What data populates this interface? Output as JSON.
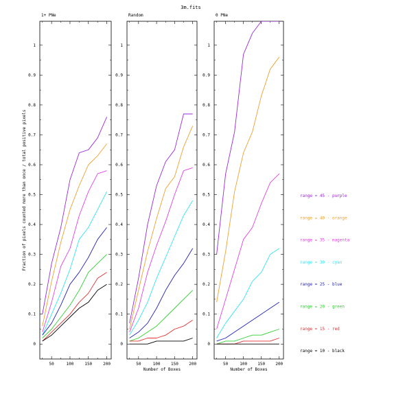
{
  "figure": {
    "title": "3m.fits"
  },
  "chart_data": [
    {
      "type": "line",
      "title": "1+ PNe",
      "xlabel": "",
      "ylabel": "Fraction of pixels counted more than once / total positive pixels",
      "xlim": [
        18,
        212
      ],
      "ylim": [
        -0.05,
        1.08
      ],
      "xticks": [
        "50",
        "100",
        "150",
        "200"
      ],
      "yticks": [
        "0",
        "0.1",
        "0.2",
        "0.3",
        "0.4",
        "0.5",
        "0.6",
        "0.7",
        "0.8",
        "0.9",
        "1"
      ],
      "x": [
        25,
        50,
        75,
        100,
        125,
        150,
        175,
        200
      ],
      "series": [
        {
          "name": "range = 45 - purple",
          "color": "#9a29e0",
          "values": [
            0.1,
            0.27,
            0.39,
            0.55,
            0.64,
            0.65,
            0.69,
            0.76
          ]
        },
        {
          "name": "range = 40 - orange",
          "color": "#f0a030",
          "values": [
            0.06,
            0.21,
            0.34,
            0.45,
            0.53,
            0.6,
            0.63,
            0.67
          ]
        },
        {
          "name": "range = 35 - magenta",
          "color": "#e540e5",
          "values": [
            0.04,
            0.14,
            0.26,
            0.32,
            0.43,
            0.51,
            0.57,
            0.58
          ]
        },
        {
          "name": "range = 30 - cyan",
          "color": "#30e5f0",
          "values": [
            0.03,
            0.1,
            0.17,
            0.25,
            0.35,
            0.39,
            0.45,
            0.51
          ]
        },
        {
          "name": "range = 25 - blue",
          "color": "#2020c0",
          "values": [
            0.03,
            0.07,
            0.13,
            0.2,
            0.24,
            0.29,
            0.35,
            0.39
          ]
        },
        {
          "name": "range = 20 - green",
          "color": "#30d030",
          "values": [
            0.02,
            0.05,
            0.09,
            0.13,
            0.18,
            0.24,
            0.27,
            0.3
          ]
        },
        {
          "name": "range = 15 - red",
          "color": "#e03030",
          "values": [
            0.01,
            0.04,
            0.07,
            0.1,
            0.14,
            0.17,
            0.22,
            0.24
          ]
        },
        {
          "name": "range = 10 - black",
          "color": "#000000",
          "values": [
            0.01,
            0.03,
            0.06,
            0.09,
            0.12,
            0.14,
            0.18,
            0.2
          ]
        }
      ]
    },
    {
      "type": "line",
      "title": "Random",
      "xlabel": "Number of Boxes",
      "ylabel": "",
      "xlim": [
        18,
        212
      ],
      "ylim": [
        -0.05,
        1.08
      ],
      "xticks": [
        "50",
        "100",
        "150",
        "200"
      ],
      "yticks": [
        "0",
        "0.1",
        "0.2",
        "0.3",
        "0.4",
        "0.5",
        "0.6",
        "0.7",
        "0.8",
        "0.9",
        "1"
      ],
      "x": [
        25,
        50,
        75,
        100,
        125,
        150,
        175,
        200
      ],
      "series": [
        {
          "name": "range = 45 - purple",
          "color": "#9a29e0",
          "values": [
            0.07,
            0.22,
            0.4,
            0.53,
            0.61,
            0.65,
            0.77,
            0.77
          ]
        },
        {
          "name": "range = 40 - orange",
          "color": "#f0a030",
          "values": [
            0.05,
            0.18,
            0.31,
            0.42,
            0.52,
            0.56,
            0.66,
            0.73
          ]
        },
        {
          "name": "range = 35 - magenta",
          "color": "#e540e5",
          "values": [
            0.04,
            0.12,
            0.24,
            0.33,
            0.41,
            0.5,
            0.58,
            0.59
          ]
        },
        {
          "name": "range = 30 - cyan",
          "color": "#30e5f0",
          "values": [
            0.03,
            0.08,
            0.14,
            0.22,
            0.29,
            0.36,
            0.43,
            0.48
          ]
        },
        {
          "name": "range = 25 - blue",
          "color": "#2020c0",
          "values": [
            0.02,
            0.04,
            0.07,
            0.12,
            0.18,
            0.23,
            0.27,
            0.32
          ]
        },
        {
          "name": "range = 20 - green",
          "color": "#30d030",
          "values": [
            0.01,
            0.02,
            0.04,
            0.06,
            0.09,
            0.12,
            0.15,
            0.18
          ]
        },
        {
          "name": "range = 15 - red",
          "color": "#e03030",
          "values": [
            0.01,
            0.01,
            0.02,
            0.02,
            0.03,
            0.05,
            0.06,
            0.08
          ]
        },
        {
          "name": "range = 10 - black",
          "color": "#000000",
          "values": [
            0.0,
            0.0,
            0.0,
            0.01,
            0.01,
            0.01,
            0.01,
            0.02
          ]
        }
      ]
    },
    {
      "type": "line",
      "title": "0 PNe",
      "xlabel": "Number of Boxes",
      "ylabel": "",
      "xlim": [
        18,
        212
      ],
      "ylim": [
        -0.05,
        1.08
      ],
      "xticks": [
        "50",
        "100",
        "150",
        "200"
      ],
      "yticks": [
        "0",
        "0.1",
        "0.2",
        "0.3",
        "0.4",
        "0.5",
        "0.6",
        "0.7",
        "0.8",
        "0.9",
        "1"
      ],
      "x": [
        25,
        50,
        75,
        100,
        125,
        150,
        175,
        200
      ],
      "series": [
        {
          "name": "range = 45 - purple",
          "color": "#9a29e0",
          "values": [
            0.3,
            0.57,
            0.71,
            0.97,
            1.04,
            1.08,
            1.08,
            1.08
          ]
        },
        {
          "name": "range = 40 - orange",
          "color": "#f0a030",
          "values": [
            0.14,
            0.31,
            0.51,
            0.64,
            0.71,
            0.83,
            0.92,
            0.96
          ]
        },
        {
          "name": "range = 35 - magenta",
          "color": "#e540e5",
          "values": [
            0.05,
            0.15,
            0.25,
            0.35,
            0.39,
            0.47,
            0.54,
            0.57
          ]
        },
        {
          "name": "range = 30 - cyan",
          "color": "#30e5f0",
          "values": [
            0.02,
            0.07,
            0.11,
            0.15,
            0.21,
            0.24,
            0.3,
            0.32
          ]
        },
        {
          "name": "range = 25 - blue",
          "color": "#2020c0",
          "values": [
            0.01,
            0.02,
            0.04,
            0.06,
            0.08,
            0.1,
            0.12,
            0.14
          ]
        },
        {
          "name": "range = 20 - green",
          "color": "#30d030",
          "values": [
            0.0,
            0.01,
            0.01,
            0.02,
            0.03,
            0.03,
            0.04,
            0.05
          ]
        },
        {
          "name": "range = 15 - red",
          "color": "#e03030",
          "values": [
            0.0,
            0.0,
            0.0,
            0.01,
            0.01,
            0.01,
            0.01,
            0.02
          ]
        },
        {
          "name": "range = 10 - black",
          "color": "#000000",
          "values": [
            0.0,
            0.0,
            0.0,
            0.0,
            0.0,
            0.0,
            0.0,
            0.0
          ]
        }
      ]
    }
  ]
}
